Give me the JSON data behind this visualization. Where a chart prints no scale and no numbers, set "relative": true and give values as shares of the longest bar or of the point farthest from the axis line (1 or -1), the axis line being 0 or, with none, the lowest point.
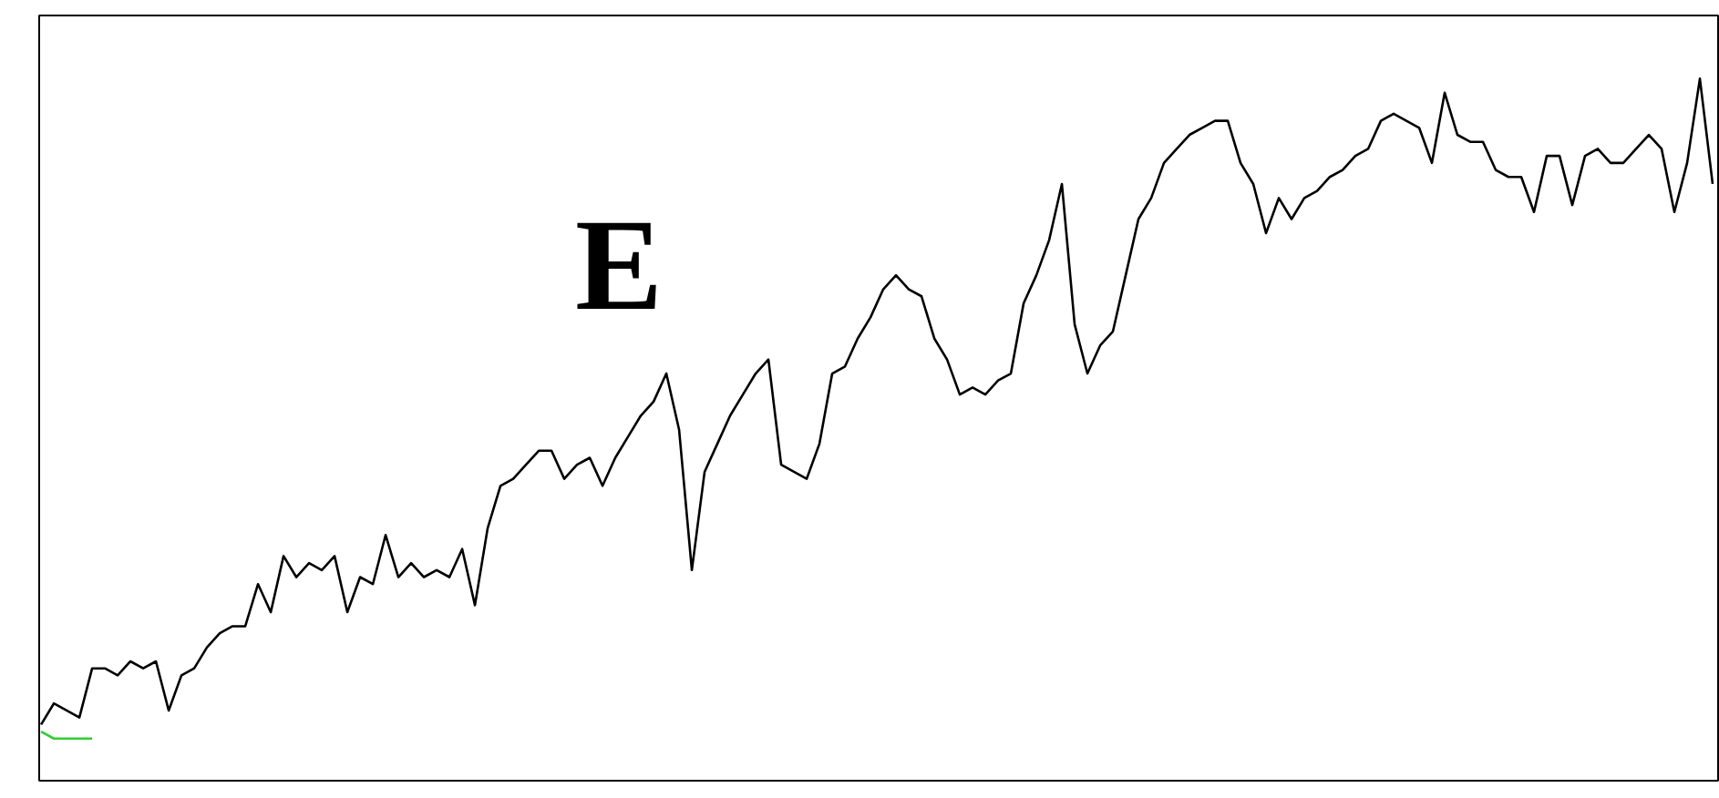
{
  "chart_data": {
    "type": "line",
    "relative": true,
    "tick_labels": false,
    "annotations": [
      "E"
    ],
    "categories": [
      null,
      null,
      null,
      null,
      null,
      null,
      null,
      null,
      null,
      null,
      null,
      null,
      null,
      null,
      null,
      null,
      null,
      null,
      null,
      null,
      null,
      null,
      null,
      null,
      null,
      null,
      null,
      null,
      null,
      null,
      null,
      null,
      null,
      null,
      null,
      null,
      null,
      null,
      null,
      null,
      null,
      null,
      null,
      null,
      null,
      null,
      null,
      null,
      null,
      null,
      null,
      null,
      null,
      null,
      null,
      null,
      null,
      null,
      null,
      null,
      null,
      null,
      null,
      null,
      null,
      null,
      null,
      null,
      null,
      null,
      null,
      null,
      null,
      null,
      null,
      null,
      null,
      null,
      null,
      null,
      null,
      null,
      null,
      null,
      null,
      null,
      null,
      null,
      null,
      null,
      null,
      null,
      null,
      null,
      null,
      null,
      null,
      null,
      null,
      null,
      null,
      null,
      null,
      null,
      null,
      null,
      null,
      null,
      null,
      null,
      null,
      null,
      null,
      null,
      null,
      null,
      null,
      null,
      null,
      null,
      null,
      null,
      null,
      null,
      null,
      null,
      null,
      null,
      null,
      null,
      null,
      null
    ],
    "series": [
      {
        "color": "#000000",
        "values": [
          0.08,
          0.11,
          0.1,
          0.09,
          0.16,
          0.16,
          0.15,
          0.17,
          0.16,
          0.17,
          0.1,
          0.15,
          0.16,
          0.19,
          0.21,
          0.22,
          0.22,
          0.28,
          0.24,
          0.32,
          0.29,
          0.31,
          0.3,
          0.32,
          0.24,
          0.29,
          0.28,
          0.35,
          0.29,
          0.31,
          0.29,
          0.3,
          0.29,
          0.33,
          0.25,
          0.36,
          0.42,
          0.43,
          0.45,
          0.47,
          0.47,
          0.43,
          0.45,
          0.46,
          0.42,
          0.46,
          0.49,
          0.52,
          0.54,
          0.58,
          0.5,
          0.3,
          0.44,
          0.48,
          0.52,
          0.55,
          0.58,
          0.6,
          0.45,
          0.44,
          0.43,
          0.48,
          0.58,
          0.59,
          0.63,
          0.66,
          0.7,
          0.72,
          0.7,
          0.69,
          0.63,
          0.6,
          0.55,
          0.56,
          0.55,
          0.57,
          0.58,
          0.68,
          0.72,
          0.77,
          0.85,
          0.65,
          0.58,
          0.62,
          0.64,
          0.72,
          0.8,
          0.83,
          0.88,
          0.9,
          0.92,
          0.93,
          0.94,
          0.94,
          0.88,
          0.85,
          0.78,
          0.83,
          0.8,
          0.83,
          0.84,
          0.86,
          0.87,
          0.89,
          0.9,
          0.94,
          0.95,
          0.94,
          0.93,
          0.88,
          0.98,
          0.92,
          0.91,
          0.91,
          0.87,
          0.86,
          0.86,
          0.81,
          0.89,
          0.89,
          0.82,
          0.89,
          0.9,
          0.88,
          0.88,
          0.9,
          0.92,
          0.9,
          0.81,
          0.88,
          1.0,
          0.85
        ]
      },
      {
        "color": "#33cc33",
        "values": [
          0.07,
          0.06,
          0.06,
          0.06,
          0.06,
          null,
          null,
          null,
          null,
          null,
          null,
          null,
          null,
          null,
          null,
          null,
          null,
          null,
          null,
          null,
          null,
          null,
          null,
          null,
          null,
          null,
          null,
          null,
          null,
          null,
          null,
          null,
          null,
          null,
          null,
          null,
          null,
          null,
          null,
          null,
          null,
          null,
          null,
          null,
          null,
          null,
          null,
          null,
          null,
          null,
          null,
          null,
          null,
          null,
          null,
          null,
          null,
          null,
          null,
          null,
          null,
          null,
          null,
          null,
          null,
          null,
          null,
          null,
          null,
          null,
          null,
          null,
          null,
          null,
          null,
          null,
          null,
          null,
          null,
          null,
          null,
          null,
          null,
          null,
          null,
          null,
          null,
          null,
          null,
          null,
          null,
          null,
          null,
          null,
          null,
          null,
          null,
          null,
          null,
          null,
          null,
          null,
          null,
          null,
          null,
          null,
          null,
          null,
          null,
          null,
          null,
          null,
          null,
          null,
          null,
          null,
          null,
          null,
          null,
          null,
          null,
          null,
          null,
          null,
          null,
          null,
          null,
          null,
          null,
          null,
          null,
          null
        ]
      }
    ]
  }
}
